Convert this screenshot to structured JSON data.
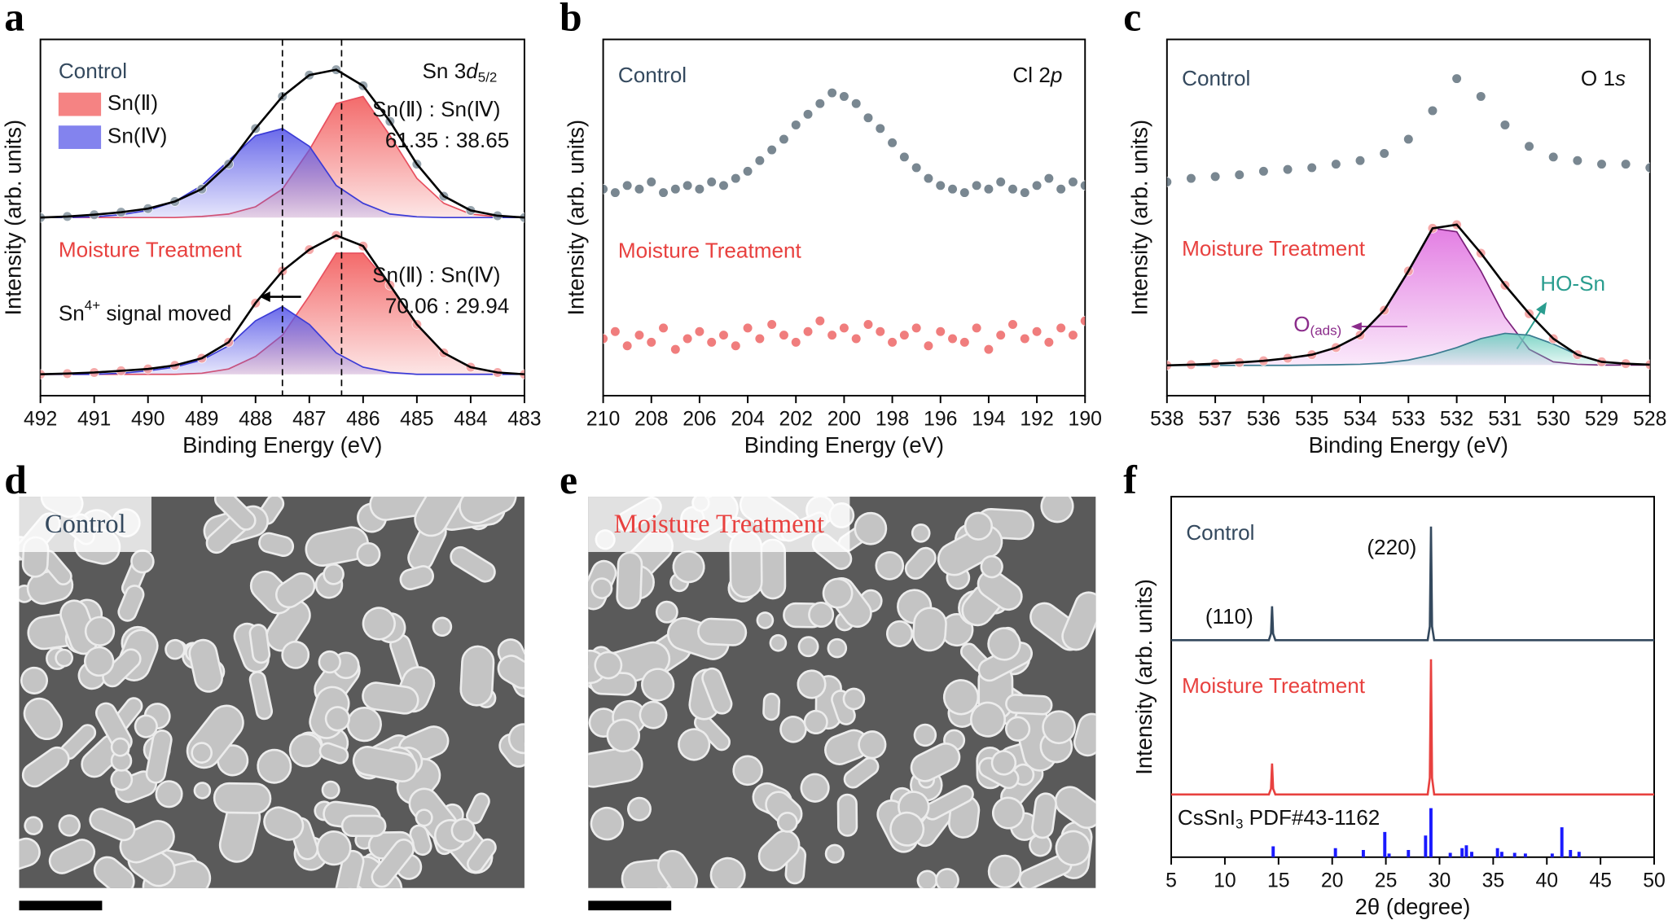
{
  "panels": [
    "a",
    "b",
    "c",
    "d",
    "e",
    "f"
  ],
  "images": [
    {
      "label": "Control",
      "color": "#34495e"
    },
    {
      "label": "Moisture Treatment",
      "color": "#e8413f"
    }
  ],
  "chart_data": [
    {
      "type": "line",
      "xlabel": "Binding Energy (eV)",
      "ylabel": "Intensity (arb. units)",
      "xlim": [
        492,
        483
      ],
      "xticks": [
        492,
        491,
        490,
        489,
        488,
        487,
        486,
        485,
        484,
        483
      ],
      "ylim": [
        0,
        100
      ],
      "legend": "upper left",
      "vlines": [
        487.5,
        486.4
      ],
      "x": [
        492,
        491.5,
        491,
        490.5,
        490,
        489.5,
        489,
        488.5,
        488,
        487.5,
        487,
        486.5,
        486,
        485.5,
        485,
        484.5,
        484,
        483.5,
        483
      ],
      "series": [
        {
          "name": "Sn(Ⅱ)",
          "color": "#e8505f",
          "fill": "#f25a5a",
          "values": [
            50,
            50,
            50,
            50,
            50,
            50,
            50.3,
            51,
            53,
            58,
            69,
            82,
            84,
            73,
            61,
            54,
            51,
            50.2,
            50
          ]
        },
        {
          "name": "Sn(Ⅳ)",
          "color": "#3b3bd6",
          "fill": "#5a5ae8",
          "values": [
            50,
            50,
            50.2,
            50.8,
            52,
            54.5,
            59,
            66,
            73,
            75,
            70,
            59,
            54,
            51,
            50.2,
            50,
            50,
            50,
            50
          ]
        },
        {
          "color": "#000000",
          "marker_color": "#8c9ba5",
          "markers": true,
          "values": [
            50,
            50.3,
            50.8,
            51.5,
            52.5,
            54.5,
            58,
            65,
            75,
            84,
            90,
            91.5,
            87,
            77,
            65,
            56,
            52,
            50.5,
            50
          ]
        },
        {
          "color": "#e8505f",
          "fill": "#f25a5a",
          "values": [
            6,
            6,
            6,
            6,
            6,
            6,
            6.3,
            7.5,
            11,
            17,
            28,
            40,
            40,
            31,
            20,
            12,
            8,
            6.5,
            6
          ]
        },
        {
          "color": "#3b3bd6",
          "fill": "#5a5ae8",
          "values": [
            6,
            6,
            6,
            6.3,
            7,
            8,
            10,
            14,
            21,
            25,
            20,
            12,
            8,
            6.5,
            6,
            6,
            6,
            6,
            6
          ]
        },
        {
          "color": "#000000",
          "marker_color": "#f4a0a0",
          "markers": true,
          "values": [
            6,
            6.2,
            6.5,
            7,
            7.5,
            8.5,
            10.5,
            15,
            26,
            35,
            41,
            45,
            42,
            31,
            20,
            12,
            8,
            6.5,
            6
          ]
        }
      ],
      "annotations": [
        {
          "color": "#34495e",
          "parts": [
            {
              "text": "Control"
            }
          ]
        },
        {
          "color": "#111111",
          "parts": [
            {
              "text": "Sn 3"
            },
            {
              "text": "d",
              "style": "italic"
            },
            {
              "text": "5/2",
              "style": "sub"
            }
          ]
        },
        {
          "color": "#111111",
          "parts": [
            {
              "text": "Sn(Ⅱ) : Sn(Ⅳ)"
            }
          ]
        },
        {
          "color": "#111111",
          "parts": [
            {
              "text": "61.35 : 38.65"
            }
          ]
        },
        {
          "color": "#e8413f",
          "parts": [
            {
              "text": "Moisture Treatment"
            }
          ]
        },
        {
          "color": "#111111",
          "parts": [
            {
              "text": "Sn(Ⅱ) : Sn(Ⅳ)"
            }
          ]
        },
        {
          "color": "#111111",
          "parts": [
            {
              "text": "70.06 : 29.94"
            }
          ]
        },
        {
          "color": "#111111",
          "parts": [
            {
              "text": "Sn"
            },
            {
              "text": "4+",
              "style": "sup"
            },
            {
              "text": " signal moved"
            }
          ]
        }
      ]
    },
    {
      "type": "line",
      "xlabel": "Binding Energy (eV)",
      "ylabel": "Intensity (arb. units)",
      "xlim": [
        210,
        190
      ],
      "xticks": [
        210,
        208,
        206,
        204,
        202,
        200,
        198,
        196,
        194,
        192,
        190
      ],
      "ylim": [
        0,
        100
      ],
      "x": [
        210,
        209.5,
        209,
        208.5,
        208,
        207.5,
        207,
        206.5,
        206,
        205.5,
        205,
        204.5,
        204,
        203.5,
        203,
        202.5,
        202,
        201.5,
        201,
        200.5,
        200,
        199.5,
        199,
        198.5,
        198,
        197.5,
        197,
        196.5,
        196,
        195.5,
        195,
        194.5,
        194,
        193.5,
        193,
        192.5,
        192,
        191.5,
        191,
        190.5,
        190
      ],
      "series": [
        {
          "line": false,
          "markers": true,
          "marker_color": "#6b7b86",
          "values": [
            58,
            57,
            59,
            58,
            60,
            57,
            58,
            59,
            58,
            60,
            59,
            61,
            63,
            66,
            69,
            72,
            76,
            79,
            82,
            85,
            84,
            82,
            78,
            75,
            71,
            67,
            64,
            61,
            59,
            58,
            57,
            59,
            58,
            60,
            58,
            57,
            59,
            61,
            58,
            60,
            59
          ]
        },
        {
          "line": false,
          "markers": true,
          "marker_color": "#ef7070",
          "values": [
            16,
            18,
            14,
            17,
            15,
            19,
            13,
            16,
            18,
            15,
            17,
            14,
            19,
            16,
            20,
            17,
            15,
            18,
            21,
            17,
            19,
            16,
            20,
            18,
            15,
            17,
            19,
            14,
            18,
            16,
            15,
            19,
            13,
            17,
            20,
            16,
            18,
            15,
            19,
            17,
            21
          ]
        }
      ],
      "annotations": [
        {
          "color": "#34495e",
          "parts": [
            {
              "text": "Control"
            }
          ]
        },
        {
          "color": "#111111",
          "parts": [
            {
              "text": "Cl 2"
            },
            {
              "text": "p",
              "style": "italic"
            }
          ]
        },
        {
          "color": "#e8413f",
          "parts": [
            {
              "text": "Moisture Treatment"
            }
          ]
        }
      ]
    },
    {
      "type": "line",
      "xlabel": "Binding Energy (eV)",
      "ylabel": "Intensity (arb. units)",
      "xlim": [
        538,
        528
      ],
      "xticks": [
        538,
        537,
        536,
        535,
        534,
        533,
        532,
        531,
        530,
        529,
        528
      ],
      "ylim": [
        0,
        100
      ],
      "x": [
        538,
        537.5,
        537,
        536.5,
        536,
        535.5,
        535,
        534.5,
        534,
        533.5,
        533,
        532.5,
        532,
        531.5,
        531,
        530.5,
        530,
        529.5,
        529,
        528.5,
        528
      ],
      "series": [
        {
          "line": false,
          "markers": true,
          "marker_color": "#6b7b86",
          "values": [
            60,
            61,
            61.5,
            62,
            63,
            63.5,
            64,
            65,
            66,
            68,
            72,
            80,
            89,
            84,
            76,
            70,
            67,
            66,
            65,
            65,
            64
          ]
        },
        {
          "color": "#7a1f7a",
          "fill": "#e070e0",
          "values": [
            8.5,
            8.7,
            9,
            9.3,
            9.8,
            10.5,
            11.5,
            13.5,
            17,
            24,
            35,
            47,
            46,
            35,
            22,
            13,
            9.5,
            8.8,
            8.6,
            8.6,
            8.6
          ]
        },
        {
          "color": "#3a7a90",
          "fill": "#70d0c0",
          "values": [
            8.5,
            8.5,
            8.5,
            8.5,
            8.5,
            8.5,
            8.6,
            8.7,
            8.8,
            9.2,
            10,
            11.5,
            13.5,
            16,
            17.5,
            17,
            14.5,
            11.5,
            9.5,
            9,
            8.7
          ]
        },
        {
          "color": "#000000",
          "marker_color": "#f4a0a0",
          "markers": true,
          "values": [
            8.5,
            8.7,
            9,
            9.3,
            9.8,
            10.5,
            11.5,
            13.5,
            17,
            24,
            35,
            47,
            48,
            40,
            31,
            23,
            16,
            11.5,
            9.5,
            9,
            8.7
          ]
        }
      ],
      "annotations": [
        {
          "color": "#34495e",
          "parts": [
            {
              "text": "Control"
            }
          ]
        },
        {
          "color": "#111111",
          "parts": [
            {
              "text": "O 1"
            },
            {
              "text": "s",
              "style": "italic"
            }
          ]
        },
        {
          "color": "#e8413f",
          "parts": [
            {
              "text": "Moisture Treatment"
            }
          ]
        },
        {
          "color": "#2a9d8f",
          "parts": [
            {
              "text": "HO-Sn"
            }
          ]
        },
        {
          "color": "#8b2c8b",
          "parts": [
            {
              "text": "O"
            },
            {
              "text": "(ads)",
              "style": "sub"
            }
          ]
        }
      ]
    },
    {
      "type": "line",
      "xlabel": "2θ (degree)",
      "ylabel": "Intensity (arb. units)",
      "xlim": [
        5,
        50
      ],
      "xticks": [
        5,
        10,
        15,
        20,
        25,
        30,
        35,
        40,
        45,
        50
      ],
      "ylim": [
        0,
        100
      ],
      "x": [
        5,
        14.1,
        14.3,
        14.4,
        14.5,
        14.7,
        28.9,
        29.1,
        29.2,
        29.3,
        29.5,
        50
      ],
      "series": [
        {
          "color": "#34495e",
          "values": [
            60.2,
            60.2,
            62,
            69.6,
            62,
            60.2,
            60.2,
            64,
            91.7,
            64,
            60.2,
            60.2
          ]
        },
        {
          "color": "#e8413f",
          "values": [
            17.4,
            17.4,
            19,
            26,
            19,
            17.4,
            17.4,
            22,
            54.9,
            22,
            17.4,
            17.4
          ]
        },
        {
          "kind": "stick",
          "color": "#1a1aff",
          "x": [
            14.5,
            20.3,
            22.9,
            24.9,
            25.3,
            27.1,
            28.7,
            29.2,
            31,
            32.1,
            32.5,
            33,
            35.4,
            35.8,
            37,
            38,
            40.5,
            41.4,
            42.2,
            43
          ],
          "values": [
            3,
            2.5,
            2,
            7,
            1,
            2,
            6,
            13.6,
            1.2,
            2.5,
            3.3,
            1.5,
            2.5,
            1.5,
            1.2,
            1,
            1,
            8.3,
            2,
            1.5
          ]
        }
      ],
      "annotations": [
        {
          "color": "#34495e",
          "parts": [
            {
              "text": "Control"
            }
          ]
        },
        {
          "color": "#111111",
          "parts": [
            {
              "text": "(220)"
            }
          ]
        },
        {
          "color": "#111111",
          "parts": [
            {
              "text": "(110)"
            }
          ]
        },
        {
          "color": "#e8413f",
          "parts": [
            {
              "text": "Moisture Treatment"
            }
          ]
        },
        {
          "color": "#111111",
          "parts": [
            {
              "text": "CsSnI"
            },
            {
              "text": "3",
              "style": "sub"
            },
            {
              "text": " PDF#43-1162"
            }
          ]
        }
      ]
    }
  ]
}
